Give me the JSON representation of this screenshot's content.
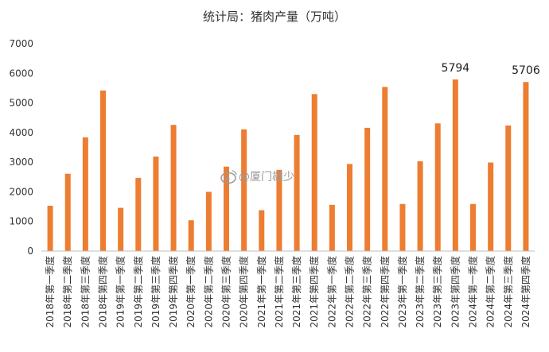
{
  "chart_data": {
    "type": "bar",
    "title": "统计局：猪肉产量（万吨）",
    "categories": [
      "2018年第一季度",
      "2018年第二季度",
      "2018年第三季度",
      "2018年第四季度",
      "2019年第一季度",
      "2019年第二季度",
      "2019年第三季度",
      "2019年第四季度",
      "2020年第一季度",
      "2020年第二季度",
      "2020年第三季度",
      "2020年第四季度",
      "2021年第一季度",
      "2021年第二季度",
      "2021年第三季度",
      "2021年第四季度",
      "2022年第一季度",
      "2022年第二季度",
      "2022年第三季度",
      "2022年第四季度",
      "2023年第一季度",
      "2023年第二季度",
      "2023年第三季度",
      "2023年第四季度",
      "2024年第一季度",
      "2024年第二季度",
      "2024年第三季度",
      "2024年第四季度"
    ],
    "values": [
      1530,
      2610,
      3840,
      5420,
      1460,
      2470,
      3190,
      4260,
      1040,
      2000,
      2850,
      4110,
      1380,
      2740,
      3920,
      5300,
      1560,
      2940,
      4160,
      5540,
      1590,
      3030,
      4310,
      5794,
      1590,
      2990,
      4240,
      5706
    ],
    "data_labels": [
      {
        "index": 23,
        "text": "5794"
      },
      {
        "index": 27,
        "text": "5706"
      }
    ],
    "ylim": [
      0,
      7000
    ],
    "yticks": [
      "0",
      "1000",
      "2000",
      "3000",
      "4000",
      "5000",
      "6000",
      "7000"
    ],
    "grid": false,
    "xlabel": "",
    "ylabel": "",
    "colors": {
      "bar": "#ED7D31",
      "axis": "#bfbfbf",
      "text": "#333333"
    }
  },
  "watermark": {
    "icon": "weibo-icon",
    "text": "@厦门雄少"
  }
}
